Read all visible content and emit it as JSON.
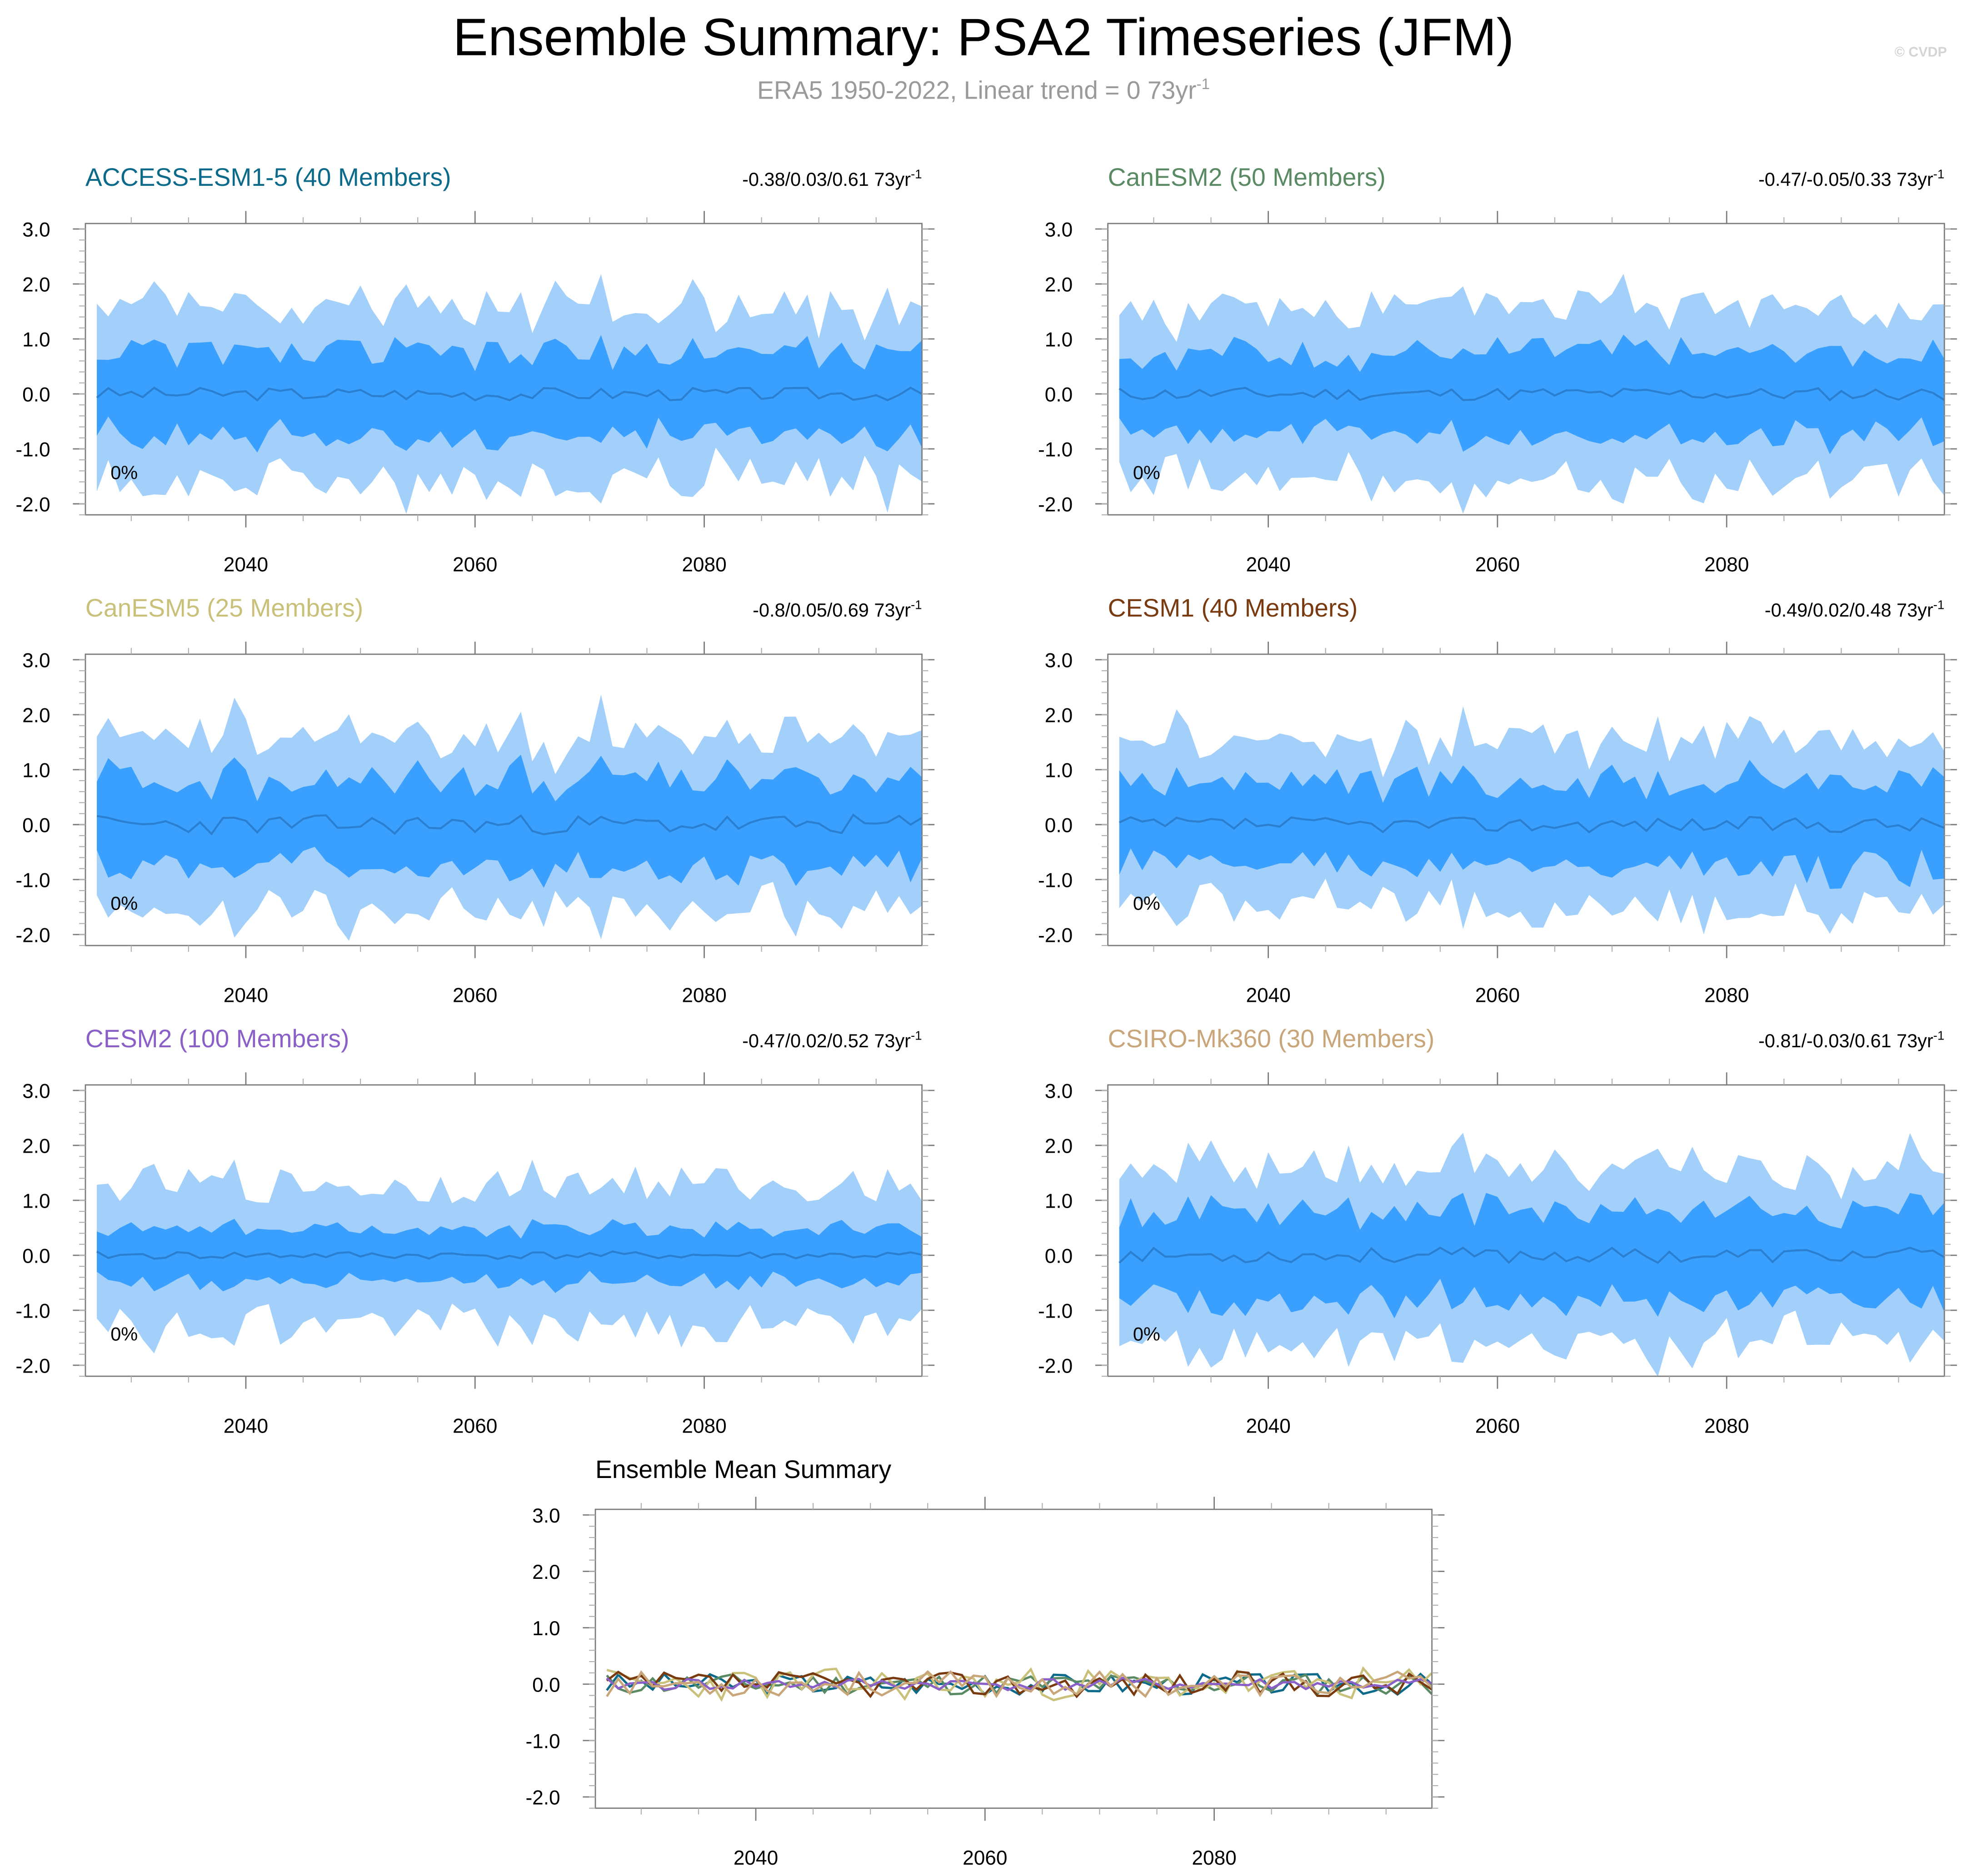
{
  "header": {
    "title": "Ensemble Summary: PSA2 Timeseries (JFM)",
    "subtitle_main": "ERA5 1950-2022, Linear trend = 0 73yr",
    "subtitle_sup": "-1",
    "credit": "© CVDP"
  },
  "colors": {
    "band_outer": "#a3d0fa",
    "band_inner": "#3aa0ff",
    "mean_line": "#2a7fd1",
    "axis": "#7a7a7a"
  },
  "chart_data": [
    {
      "type": "area",
      "id": "access",
      "title": "ACCESS-ESM1-5 (40 Members)",
      "title_color": "#0b6a8a",
      "trend_text": "-0.38/0.03/0.61 73yr",
      "trend_sup": "-1",
      "pct_label": "0%",
      "x_range": [
        2026,
        2099
      ],
      "ylim": [
        -2.2,
        3.1
      ],
      "y_ticks": [
        -2,
        -1,
        0,
        1,
        2,
        3
      ],
      "y_tick_labels": [
        "-2.0",
        "-1.0",
        "0.0",
        "1.0",
        "2.0",
        "3.0"
      ],
      "x_ticks": [
        2040,
        2060,
        2080
      ],
      "x_tick_labels": [
        "2040",
        "2060",
        "2080"
      ],
      "seed": 3,
      "amp": 0.55,
      "mean_amp": 0.12
    },
    {
      "type": "area",
      "id": "canesm2",
      "title": "CanESM2 (50 Members)",
      "title_color": "#5a8a64",
      "trend_text": "-0.47/-0.05/0.33 73yr",
      "trend_sup": "-1",
      "pct_label": "0%",
      "x_range": [
        2026,
        2099
      ],
      "ylim": [
        -2.2,
        3.1
      ],
      "y_ticks": [
        -2,
        -1,
        0,
        1,
        2,
        3
      ],
      "y_tick_labels": [
        "-2.0",
        "-1.0",
        "0.0",
        "1.0",
        "2.0",
        "3.0"
      ],
      "x_ticks": [
        2040,
        2060,
        2080
      ],
      "x_tick_labels": [
        "2040",
        "2060",
        "2080"
      ],
      "seed": 11,
      "amp": 0.55,
      "mean_amp": 0.12
    },
    {
      "type": "area",
      "id": "canesm5",
      "title": "CanESM5 (25 Members)",
      "title_color": "#c9c07a",
      "trend_text": "-0.8/0.05/0.69 73yr",
      "trend_sup": "-1",
      "pct_label": "0%",
      "x_range": [
        2026,
        2099
      ],
      "ylim": [
        -2.2,
        3.1
      ],
      "y_ticks": [
        -2,
        -1,
        0,
        1,
        2,
        3
      ],
      "y_tick_labels": [
        "-2.0",
        "-1.0",
        "0.0",
        "1.0",
        "2.0",
        "3.0"
      ],
      "x_ticks": [
        2040,
        2060,
        2080
      ],
      "x_tick_labels": [
        "2040",
        "2060",
        "2080"
      ],
      "seed": 23,
      "amp": 0.62,
      "mean_amp": 0.18
    },
    {
      "type": "area",
      "id": "cesm1",
      "title": "CESM1 (40 Members)",
      "title_color": "#7a3a10",
      "trend_text": "-0.49/0.02/0.48 73yr",
      "trend_sup": "-1",
      "pct_label": "0%",
      "x_range": [
        2026,
        2099
      ],
      "ylim": [
        -2.2,
        3.1
      ],
      "y_ticks": [
        -2,
        -1,
        0,
        1,
        2,
        3
      ],
      "y_tick_labels": [
        "-2.0",
        "-1.0",
        "0.0",
        "1.0",
        "2.0",
        "3.0"
      ],
      "x_ticks": [
        2040,
        2060,
        2080
      ],
      "x_tick_labels": [
        "2040",
        "2060",
        "2080"
      ],
      "seed": 37,
      "amp": 0.58,
      "mean_amp": 0.14
    },
    {
      "type": "area",
      "id": "cesm2",
      "title": "CESM2 (100 Members)",
      "title_color": "#8a60c8",
      "trend_text": "-0.47/0.02/0.52 73yr",
      "trend_sup": "-1",
      "pct_label": "0%",
      "x_range": [
        2026,
        2099
      ],
      "ylim": [
        -2.2,
        3.1
      ],
      "y_ticks": [
        -2,
        -1,
        0,
        1,
        2,
        3
      ],
      "y_tick_labels": [
        "-2.0",
        "-1.0",
        "0.0",
        "1.0",
        "2.0",
        "3.0"
      ],
      "x_ticks": [
        2040,
        2060,
        2080
      ],
      "x_tick_labels": [
        "2040",
        "2060",
        "2080"
      ],
      "seed": 41,
      "amp": 0.35,
      "mean_amp": 0.07
    },
    {
      "type": "area",
      "id": "csiro",
      "title": "CSIRO-Mk360 (30 Members)",
      "title_color": "#c9a57a",
      "trend_text": "-0.81/-0.03/0.61 73yr",
      "trend_sup": "-1",
      "pct_label": "0%",
      "x_range": [
        2026,
        2099
      ],
      "ylim": [
        -2.2,
        3.1
      ],
      "y_ticks": [
        -2,
        -1,
        0,
        1,
        2,
        3
      ],
      "y_tick_labels": [
        "-2.0",
        "-1.0",
        "0.0",
        "1.0",
        "2.0",
        "3.0"
      ],
      "x_ticks": [
        2040,
        2060,
        2080
      ],
      "x_tick_labels": [
        "2040",
        "2060",
        "2080"
      ],
      "seed": 53,
      "amp": 0.6,
      "mean_amp": 0.14
    },
    {
      "type": "line",
      "id": "ensmean",
      "title": "Ensemble Mean Summary",
      "title_color": "#000000",
      "x_range": [
        2026,
        2099
      ],
      "ylim": [
        -2.2,
        3.1
      ],
      "y_ticks": [
        -2,
        -1,
        0,
        1,
        2,
        3
      ],
      "y_tick_labels": [
        "-2.0",
        "-1.0",
        "0.0",
        "1.0",
        "2.0",
        "3.0"
      ],
      "x_ticks": [
        2040,
        2060,
        2080
      ],
      "x_tick_labels": [
        "2040",
        "2060",
        "2080"
      ],
      "series": [
        {
          "name": "ACCESS-ESM1-5",
          "color": "#0b6a8a",
          "seed": 3,
          "amp": 0.12
        },
        {
          "name": "CanESM2",
          "color": "#5a8a64",
          "seed": 11,
          "amp": 0.12
        },
        {
          "name": "CanESM5",
          "color": "#c9c07a",
          "seed": 23,
          "amp": 0.18
        },
        {
          "name": "CESM1",
          "color": "#7a3a10",
          "seed": 37,
          "amp": 0.14
        },
        {
          "name": "CESM2",
          "color": "#8a60c8",
          "seed": 41,
          "amp": 0.07
        },
        {
          "name": "CSIRO-Mk360",
          "color": "#c9a57a",
          "seed": 53,
          "amp": 0.14
        }
      ]
    }
  ]
}
